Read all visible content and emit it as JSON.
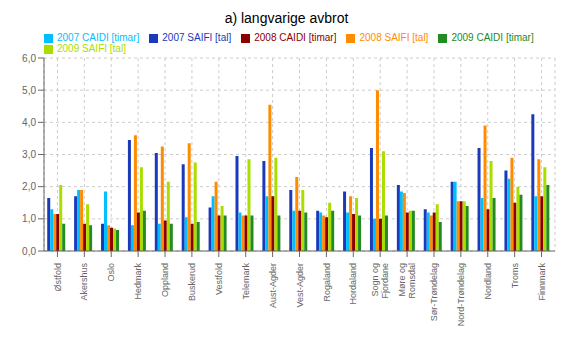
{
  "chart_data": {
    "type": "bar",
    "title": "a) langvarige avbrot",
    "categories": [
      "Østfold",
      "Akershus",
      "Oslo",
      "Hedmark",
      "Oppland",
      "Buskerud",
      "Vestfold",
      "Telemark",
      "Aust-Agder",
      "Vest-Agder",
      "Rogaland",
      "Hordaland",
      "Sogn og\nFjordane",
      "Møre og\nRomsdal",
      "Sør-Trøndelag",
      "Nord-Trøndelag",
      "Nordland",
      "Troms",
      "Finnmark"
    ],
    "series": [
      {
        "name": "2007 SAIFI [tal]",
        "color": "#1a3aba",
        "values": [
          1.65,
          1.7,
          0.85,
          3.45,
          3.05,
          2.7,
          1.35,
          2.95,
          2.8,
          1.9,
          1.25,
          1.85,
          3.2,
          2.05,
          1.3,
          2.15,
          3.2,
          2.5,
          4.25
        ]
      },
      {
        "name": "2007 CAIDI [timar]",
        "color": "#00bfff",
        "values": [
          1.3,
          1.9,
          1.85,
          0.8,
          0.85,
          1.05,
          1.7,
          1.2,
          1.7,
          1.25,
          1.2,
          1.2,
          1.0,
          1.85,
          1.2,
          2.15,
          1.65,
          2.25,
          1.7
        ]
      },
      {
        "name": "2008 SAIFI [tal]",
        "color": "#ff8c00",
        "values": [
          1.15,
          1.9,
          0.8,
          3.6,
          3.25,
          3.35,
          2.15,
          1.1,
          4.55,
          2.3,
          1.1,
          1.7,
          5.0,
          1.8,
          1.1,
          1.55,
          3.9,
          2.9,
          2.85
        ]
      },
      {
        "name": "2008 CAIDI [timar]",
        "color": "#8b0000",
        "values": [
          1.15,
          0.85,
          0.72,
          1.2,
          0.95,
          0.85,
          1.1,
          1.1,
          1.7,
          1.25,
          1.05,
          1.15,
          1.0,
          1.2,
          1.2,
          1.55,
          1.3,
          1.5,
          1.7
        ]
      },
      {
        "name": "2009 SAIFI [tal]",
        "color": "#aadd00",
        "values": [
          2.05,
          1.45,
          0.7,
          2.6,
          2.15,
          2.75,
          1.4,
          2.85,
          2.9,
          1.9,
          1.5,
          1.65,
          3.1,
          1.25,
          1.45,
          1.55,
          2.8,
          2.0,
          2.6
        ]
      },
      {
        "name": "2009 CAIDI [timar]",
        "color": "#228b22",
        "values": [
          0.85,
          0.8,
          0.65,
          1.25,
          0.85,
          0.9,
          1.1,
          1.1,
          1.1,
          1.2,
          1.25,
          1.1,
          1.1,
          1.25,
          0.9,
          1.4,
          1.65,
          1.75,
          2.05
        ]
      }
    ],
    "ylim": [
      0,
      6.0
    ],
    "yticks": [
      {
        "value": 0.0,
        "label": "0,0"
      },
      {
        "value": 1.0,
        "label": "1,0"
      },
      {
        "value": 2.0,
        "label": "2,0"
      },
      {
        "value": 3.0,
        "label": "3,0"
      },
      {
        "value": 4.0,
        "label": "4,0"
      },
      {
        "value": 5.0,
        "label": "5,0"
      },
      {
        "value": 6.0,
        "label": "6,0"
      }
    ],
    "grid": true,
    "legend": "upper left"
  }
}
